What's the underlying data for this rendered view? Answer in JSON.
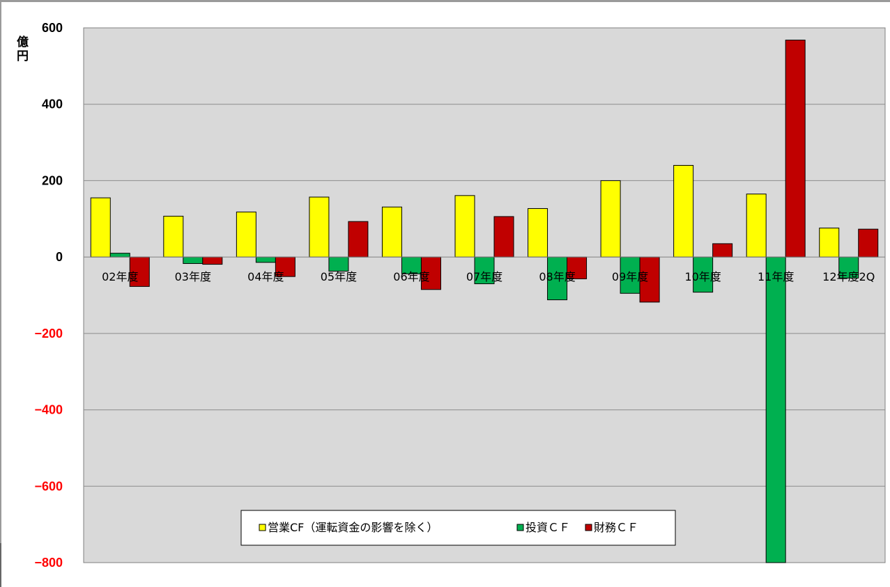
{
  "chart_data": {
    "type": "bar",
    "unit_label": "億円",
    "categories": [
      "02年度",
      "03年度",
      "04年度",
      "05年度",
      "06年度",
      "07年度",
      "08年度",
      "09年度",
      "10年度",
      "11年度",
      "12年度2Q"
    ],
    "series": [
      {
        "name": "営業CF（運転資金の影響を除く）",
        "color": "#ffff00",
        "values": [
          155,
          107,
          118,
          157,
          131,
          161,
          127,
          200,
          240,
          165,
          76
        ]
      },
      {
        "name": "投資ＣＦ",
        "color": "#00b050",
        "values": [
          10,
          -17,
          -14,
          -37,
          -44,
          -70,
          -112,
          -95,
          -92,
          -800,
          -55
        ]
      },
      {
        "name": "財務ＣＦ",
        "color": "#c00000",
        "values": [
          -77,
          -19,
          -51,
          93,
          -85,
          106,
          -57,
          -118,
          35,
          568,
          73
        ]
      }
    ],
    "ylim": [
      -800,
      600
    ],
    "yticks": [
      600,
      400,
      200,
      0,
      -200,
      -400,
      -600,
      -800
    ],
    "negative_tick_color": "#ff0000",
    "plot_background": "#d9d9d9",
    "grid": true,
    "legend_position": "bottom-center"
  }
}
